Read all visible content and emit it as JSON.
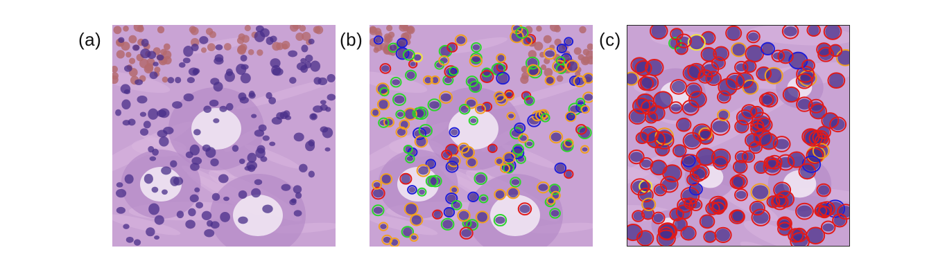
{
  "panels": [
    {
      "label": "(a)",
      "kind": "raw",
      "overlay_colors": []
    },
    {
      "label": "(b)",
      "kind": "overlay",
      "overlay_colors": [
        "#2bd52b",
        "#1d1dd8",
        "#f0a020",
        "#e01a1a",
        "#f2e63a"
      ]
    },
    {
      "label": "(c)",
      "kind": "overlay",
      "overlay_colors": [
        "#e01a1a",
        "#f0a020",
        "#1d1dd8",
        "#2bd52b",
        "#f2e63a"
      ]
    }
  ],
  "colors": {
    "tissue": "#c9a3d4",
    "stroma": "#d8b7de",
    "lumen": "#f1e6f3",
    "nucleus": "#4a2f8a",
    "blood": "#b46a6e"
  }
}
